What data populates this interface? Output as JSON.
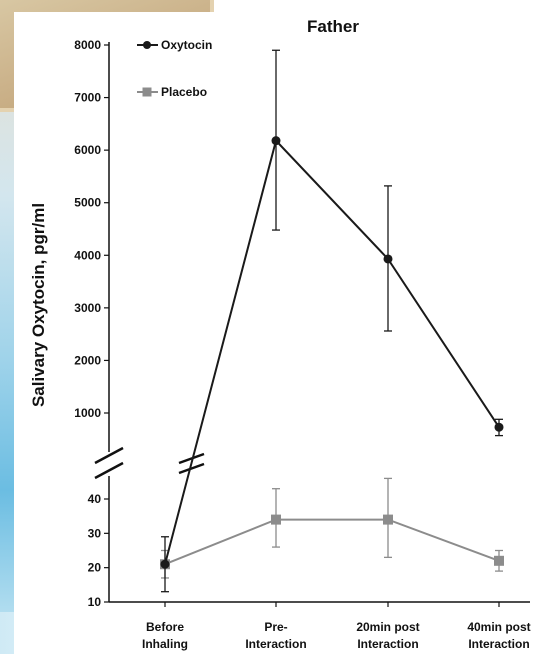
{
  "chart_data": {
    "type": "line",
    "title": "Father",
    "ylabel": "Salivary Oxytocin, pgr/ml",
    "xlabel": "",
    "categories": [
      [
        "Before",
        "Inhaling"
      ],
      [
        "Pre-",
        "Interaction"
      ],
      [
        "20min post",
        "Interaction"
      ],
      [
        "40min post",
        "Interaction"
      ]
    ],
    "y_axis_broken": true,
    "ylim_lower": [
      10,
      40
    ],
    "ylim_upper": [
      1000,
      8000
    ],
    "yticks_lower": [
      10,
      20,
      30,
      40
    ],
    "yticks_upper": [
      1000,
      2000,
      3000,
      4000,
      5000,
      6000,
      7000,
      8000
    ],
    "legend_position": "top-left",
    "series": [
      {
        "name": "Oxytocin",
        "color": "#1a1a1a",
        "marker": "circle",
        "values": [
          21,
          6180,
          3930,
          730
        ],
        "err_low": [
          13,
          4480,
          2560,
          570
        ],
        "err_high": [
          29,
          7900,
          5320,
          880
        ]
      },
      {
        "name": "Placebo",
        "color": "#8c8c8c",
        "marker": "square",
        "values": [
          21,
          34,
          34,
          22
        ],
        "err_low": [
          17,
          26,
          23,
          19
        ],
        "err_high": [
          25,
          43,
          46,
          25
        ]
      }
    ]
  }
}
